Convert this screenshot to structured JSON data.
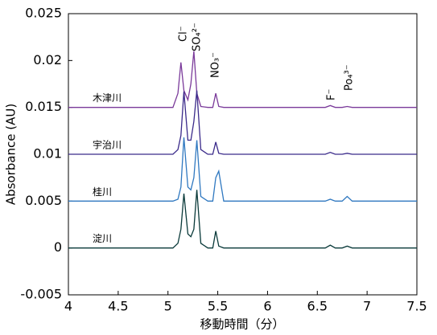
{
  "chart_data": {
    "type": "line",
    "x_label": "移動時間（分）",
    "y_label": "Absorbance (AU)",
    "xlim": [
      4,
      7.5
    ],
    "ylim": [
      -0.005,
      0.025
    ],
    "xticks": [
      4,
      4.5,
      5,
      5.5,
      6,
      6.5,
      7,
      7.5
    ],
    "yticks": [
      -0.005,
      0,
      0.005,
      0.01,
      0.015,
      0.02,
      0.025
    ],
    "x": [
      4,
      5.05,
      5.1,
      5.13,
      5.16,
      5.2,
      5.23,
      5.26,
      5.29,
      5.33,
      5.4,
      5.45,
      5.48,
      5.51,
      5.56,
      6.58,
      6.63,
      6.68,
      6.75,
      6.8,
      6.85,
      7.5
    ],
    "series": [
      {
        "name": "木津川",
        "color": "#7a3a9a",
        "values": [
          0.015,
          0.015,
          0.0165,
          0.0198,
          0.0168,
          0.0158,
          0.0175,
          0.021,
          0.0165,
          0.0151,
          0.015,
          0.015,
          0.0165,
          0.0151,
          0.015,
          0.015,
          0.0152,
          0.015,
          0.015,
          0.0151,
          0.015,
          0.015
        ]
      },
      {
        "name": "宇治川",
        "color": "#3a2a8a",
        "values": [
          0.01,
          0.01,
          0.0105,
          0.012,
          0.0167,
          0.0115,
          0.0115,
          0.0135,
          0.0168,
          0.0105,
          0.01,
          0.01,
          0.0113,
          0.0101,
          0.01,
          0.01,
          0.0102,
          0.01,
          0.01,
          0.0101,
          0.01,
          0.01
        ]
      },
      {
        "name": "桂川",
        "color": "#2f78c0",
        "values": [
          0.005,
          0.005,
          0.0052,
          0.0065,
          0.0118,
          0.0065,
          0.0062,
          0.0075,
          0.0115,
          0.0055,
          0.005,
          0.005,
          0.0075,
          0.0082,
          0.005,
          0.005,
          0.0052,
          0.005,
          0.005,
          0.0055,
          0.005,
          0.005
        ]
      },
      {
        "name": "淀川",
        "color": "#0a3a3a",
        "values": [
          0,
          0,
          0.0005,
          0.002,
          0.0058,
          0.0015,
          0.0012,
          0.002,
          0.0062,
          0.0005,
          0,
          0,
          0.0018,
          0.0002,
          0,
          0,
          0.0003,
          0,
          0,
          0.0002,
          0,
          0
        ]
      }
    ],
    "annotations": [
      "Cl⁻",
      "SO₄²⁻",
      "NO₃⁻",
      "F⁻",
      "Po₄³⁻"
    ]
  }
}
